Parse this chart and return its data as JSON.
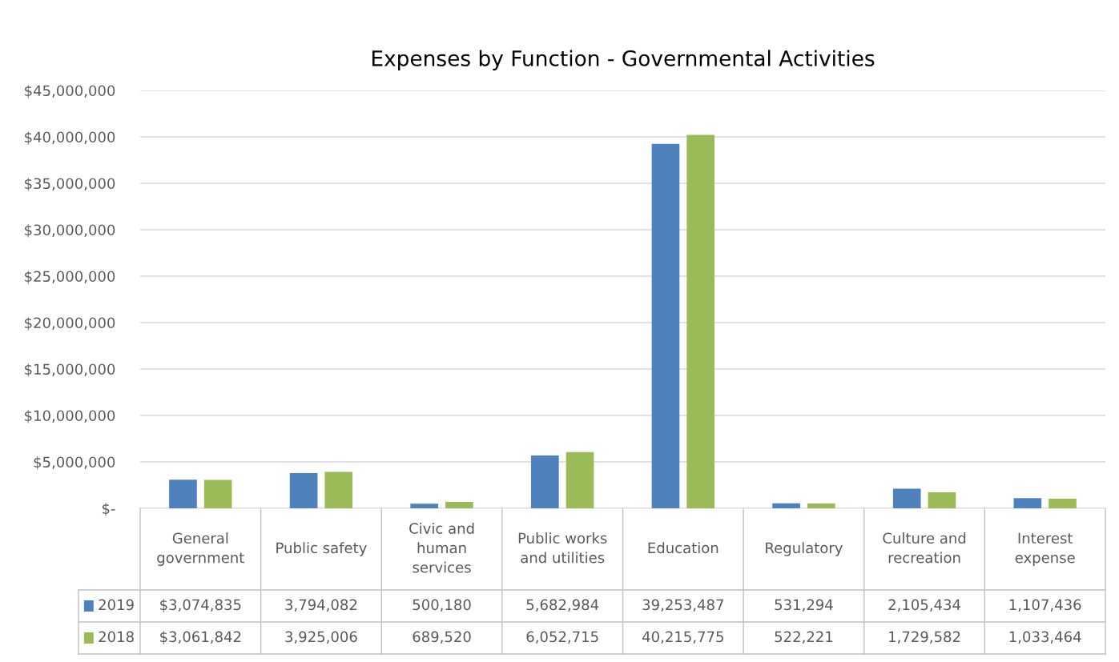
{
  "chart_data": {
    "type": "bar",
    "title": "Expenses by Function - Governmental Activities",
    "categories": [
      "General\ngovernment",
      "Public safety",
      "Civic and\nhuman\nservices",
      "Public works\nand utilities",
      "Education",
      "Regulatory",
      "Culture and\nrecreation",
      "Interest\nexpense"
    ],
    "series": [
      {
        "name": "2019",
        "color": "#4f81bd",
        "values": [
          3074835,
          3794082,
          500180,
          5682984,
          39253487,
          531294,
          2105434,
          1107436
        ],
        "value_labels": [
          "$3,074,835",
          "3,794,082",
          "500,180",
          "5,682,984",
          "39,253,487",
          "531,294",
          "2,105,434",
          "1,107,436"
        ]
      },
      {
        "name": "2018",
        "color": "#9bbb59",
        "values": [
          3061842,
          3925006,
          689520,
          6052715,
          40215775,
          522221,
          1729582,
          1033464
        ],
        "value_labels": [
          "$3,061,842",
          "3,925,006",
          "689,520",
          "6,052,715",
          "40,215,775",
          "522,221",
          "1,729,582",
          "1,033,464"
        ]
      }
    ],
    "ylim": [
      0,
      45000000
    ],
    "yticks": [
      {
        "value": 0,
        "label": "$-"
      },
      {
        "value": 5000000,
        "label": "$5,000,000"
      },
      {
        "value": 10000000,
        "label": "$10,000,000"
      },
      {
        "value": 15000000,
        "label": "$15,000,000"
      },
      {
        "value": 20000000,
        "label": "$20,000,000"
      },
      {
        "value": 25000000,
        "label": "$25,000,000"
      },
      {
        "value": 30000000,
        "label": "$30,000,000"
      },
      {
        "value": 35000000,
        "label": "$35,000,000"
      },
      {
        "value": 40000000,
        "label": "$40,000,000"
      },
      {
        "value": 45000000,
        "label": "$45,000,000"
      }
    ],
    "grid": "y",
    "legend": "bottom"
  }
}
